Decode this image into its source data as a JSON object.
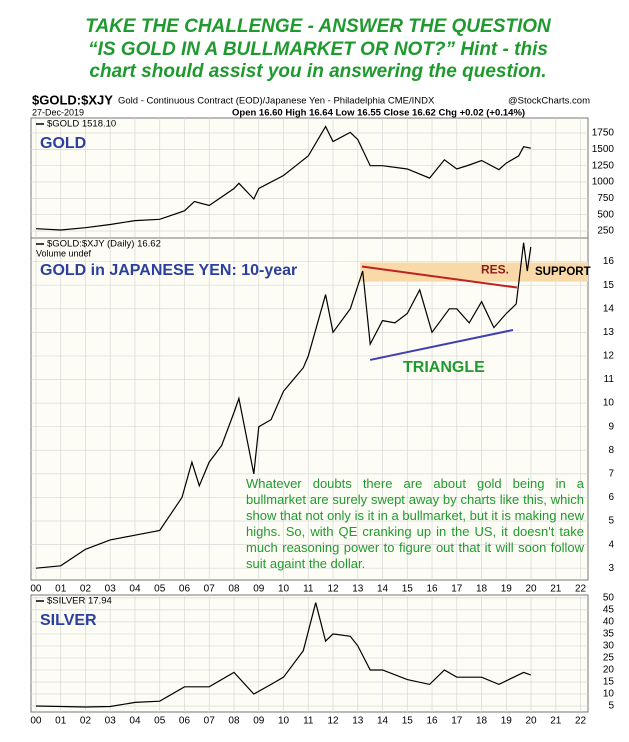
{
  "header": {
    "lines": [
      "TAKE THE CHALLENGE - ANSWER THE QUESTION",
      "“IS GOLD IN A BULLMARKET OR NOT?” Hint - this",
      "chart should assist you in answering the question."
    ]
  },
  "info": {
    "symbol": "$GOLD:$XJY",
    "description": "Gold - Continuous Contract (EOD)/Japanese Yen - Philadelphia CME/INDX",
    "source": "@StockCharts.com",
    "date": "27-Dec-2019",
    "quote": "Open 16.60 High 16.64 Low 16.55 Close 16.62 Chg +0.02 (+0.14%)"
  },
  "chart_data": [
    {
      "type": "line",
      "label": "GOLD",
      "grid": true,
      "x": [
        2000,
        2001,
        2002,
        2003,
        2004,
        2005,
        2006,
        2006.4,
        2007,
        2008,
        2008.2,
        2008.8,
        2009,
        2010,
        2010.5,
        2011,
        2011.7,
        2012,
        2012.7,
        2013,
        2013.5,
        2014,
        2015,
        2015.9,
        2016.5,
        2017,
        2017.5,
        2018,
        2018.7,
        2019,
        2019.5,
        2019.7,
        2019.99
      ],
      "series": [
        {
          "name": "$GOLD 1518.10",
          "color": "#000000",
          "values": [
            285,
            265,
            300,
            350,
            410,
            430,
            560,
            700,
            640,
            900,
            980,
            740,
            900,
            1100,
            1250,
            1400,
            1850,
            1620,
            1760,
            1650,
            1250,
            1250,
            1200,
            1060,
            1340,
            1200,
            1260,
            1330,
            1190,
            1290,
            1400,
            1540,
            1518.1
          ]
        }
      ],
      "xlim": [
        1999.8,
        2022.3
      ],
      "ylim": [
        143,
        1980
      ],
      "yticks": [
        250,
        500,
        750,
        1000,
        1250,
        1500,
        1750
      ]
    },
    {
      "type": "line",
      "label": "GOLD in JAPANESE YEN: 10-year",
      "grid": true,
      "volume_note": "Volume undef",
      "x": [
        2000,
        2001,
        2002,
        2003,
        2004,
        2005,
        2005.9,
        2006.3,
        2006.6,
        2007,
        2007.5,
        2008,
        2008.2,
        2008.8,
        2009,
        2009.5,
        2010,
        2010.8,
        2011,
        2011.7,
        2012,
        2012.7,
        2013.2,
        2013.5,
        2014,
        2014.5,
        2015,
        2015.5,
        2016,
        2016.7,
        2017,
        2017.5,
        2018,
        2018.5,
        2019,
        2019.4,
        2019.7,
        2019.85,
        2019.99
      ],
      "series": [
        {
          "name": "$GOLD:$XJY (Daily) 16.62",
          "color": "#000000",
          "values": [
            3.0,
            3.1,
            3.8,
            4.2,
            4.4,
            4.6,
            6.0,
            7.5,
            6.5,
            7.5,
            8.2,
            9.6,
            10.2,
            7.0,
            9.0,
            9.3,
            10.5,
            11.5,
            12.0,
            14.6,
            13.0,
            14.0,
            15.6,
            12.5,
            13.5,
            13.4,
            13.8,
            14.8,
            13.0,
            14.0,
            14.0,
            13.4,
            14.3,
            13.2,
            13.8,
            14.2,
            16.8,
            15.6,
            16.62
          ]
        }
      ],
      "xlim": [
        1999.8,
        2022.3
      ],
      "ylim": [
        2.5,
        17
      ],
      "yticks": [
        3,
        4,
        5,
        6,
        7,
        8,
        9,
        10,
        11,
        12,
        13,
        14,
        15,
        16
      ],
      "xticks": [
        {
          "value": 2000,
          "label": "00"
        },
        {
          "value": 2001,
          "label": "01"
        },
        {
          "value": 2002,
          "label": "02"
        },
        {
          "value": 2003,
          "label": "03"
        },
        {
          "value": 2004,
          "label": "04"
        },
        {
          "value": 2005,
          "label": "05"
        },
        {
          "value": 2006,
          "label": "06"
        },
        {
          "value": 2007,
          "label": "07"
        },
        {
          "value": 2008,
          "label": "08"
        },
        {
          "value": 2009,
          "label": "09"
        },
        {
          "value": 2010,
          "label": "10"
        },
        {
          "value": 2011,
          "label": "11"
        },
        {
          "value": 2012,
          "label": "12"
        },
        {
          "value": 2013,
          "label": "13"
        },
        {
          "value": 2014,
          "label": "14"
        },
        {
          "value": 2015,
          "label": "15"
        },
        {
          "value": 2016,
          "label": "16"
        },
        {
          "value": 2017,
          "label": "17"
        },
        {
          "value": 2018,
          "label": "18"
        },
        {
          "value": 2019,
          "label": "19"
        },
        {
          "value": 2020,
          "label": "20"
        },
        {
          "value": 2021,
          "label": "21"
        },
        {
          "value": 2022,
          "label": "22"
        }
      ],
      "resistance": {
        "label": "RES.",
        "color": "#c02020",
        "x": [
          2013.17,
          2019.43
        ],
        "y": [
          15.79,
          14.9
        ]
      },
      "support_band": {
        "label": "SUPPORT",
        "color": "#f9d9a8",
        "x_start": 2013.1,
        "ylim": [
          15.15,
          15.96
        ]
      },
      "triangle": {
        "label": "TRIANGLE",
        "color": "#4040b0",
        "x": [
          2013.5,
          2019.27
        ],
        "y": [
          11.83,
          13.1
        ]
      },
      "commentary": "Whatever doubts there are about gold being in a bullmarket are surely swept away by charts like this, which show that not only is it in a bullmarket, but it is making new highs. So, with QE cranking up in the US, it doesn't take much reasoning power to figure out that it will soon follow suit againt the dollar."
    },
    {
      "type": "line",
      "label": "SILVER",
      "grid": true,
      "x": [
        2000,
        2002,
        2003,
        2004,
        2005,
        2006,
        2007,
        2008,
        2008.8,
        2009.5,
        2010,
        2010.8,
        2011.3,
        2011.7,
        2012,
        2012.7,
        2013,
        2013.5,
        2014,
        2015,
        2015.9,
        2016.5,
        2017,
        2018,
        2018.7,
        2019,
        2019.7,
        2019.99
      ],
      "series": [
        {
          "name": "$SILVER 17.94",
          "color": "#000000",
          "values": [
            5.0,
            4.6,
            4.8,
            6.5,
            7.0,
            13,
            13,
            19,
            10,
            14,
            17,
            28,
            48,
            32,
            35,
            34,
            30,
            20,
            20,
            16,
            14,
            20,
            17,
            17,
            14,
            15.5,
            19,
            17.94
          ]
        }
      ],
      "xlim": [
        1999.8,
        2022.3
      ],
      "ylim": [
        2.5,
        51.2
      ],
      "yticks": [
        5,
        10,
        15,
        20,
        25,
        30,
        35,
        40,
        45,
        50
      ],
      "xticks": [
        {
          "value": 2000,
          "label": "00"
        },
        {
          "value": 2001,
          "label": "01"
        },
        {
          "value": 2002,
          "label": "02"
        },
        {
          "value": 2003,
          "label": "03"
        },
        {
          "value": 2004,
          "label": "04"
        },
        {
          "value": 2005,
          "label": "05"
        },
        {
          "value": 2006,
          "label": "06"
        },
        {
          "value": 2007,
          "label": "07"
        },
        {
          "value": 2008,
          "label": "08"
        },
        {
          "value": 2009,
          "label": "09"
        },
        {
          "value": 2010,
          "label": "10"
        },
        {
          "value": 2011,
          "label": "11"
        },
        {
          "value": 2012,
          "label": "12"
        },
        {
          "value": 2013,
          "label": "13"
        },
        {
          "value": 2014,
          "label": "14"
        },
        {
          "value": 2015,
          "label": "15"
        },
        {
          "value": 2016,
          "label": "16"
        },
        {
          "value": 2017,
          "label": "17"
        },
        {
          "value": 2018,
          "label": "18"
        },
        {
          "value": 2019,
          "label": "19"
        },
        {
          "value": 2020,
          "label": "20"
        },
        {
          "value": 2021,
          "label": "21"
        },
        {
          "value": 2022,
          "label": "22"
        }
      ]
    }
  ]
}
